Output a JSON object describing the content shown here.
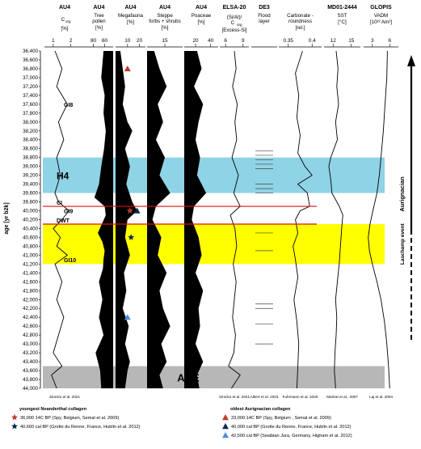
{
  "chart_data": {
    "type": "line",
    "y_axis": {
      "label": "age [yr b2k]",
      "min": 36400,
      "max": 44000,
      "step": 200,
      "reversed": true
    },
    "panels": [
      {
        "id": "corg",
        "header": "AU4",
        "var_lines": [
          "C",
          "org"
        ],
        "unit": "[%]",
        "ticks": [
          1,
          2
        ],
        "range": [
          0.5,
          2.8
        ],
        "fill": "none",
        "citation": "Sirocko et al. 2021"
      },
      {
        "id": "tree",
        "header": "AU4",
        "var_lines": [
          "Tree",
          "pollen"
        ],
        "unit": "[%]",
        "ticks": [
          60,
          80
        ],
        "range": [
          95,
          45
        ],
        "fill": "black",
        "citation": ""
      },
      {
        "id": "mega",
        "header": "AU4",
        "var_lines": [
          "Megafauna"
        ],
        "unit": "[%]",
        "ticks": [
          10,
          20
        ],
        "range": [
          0,
          25
        ],
        "fill": "black",
        "citation": ""
      },
      {
        "id": "steppe",
        "header": "AU4",
        "var_lines": [
          "Steppe",
          "forbs + shrubs"
        ],
        "unit": "[%]",
        "ticks": [
          15
        ],
        "range": [
          5,
          25
        ],
        "fill": "black",
        "citation": ""
      },
      {
        "id": "poaceae",
        "header": "AU4",
        "var_lines": [
          "Poaceae"
        ],
        "unit": "[%]",
        "ticks": [
          20,
          40
        ],
        "range": [
          5,
          50
        ],
        "fill": "black",
        "citation": ""
      },
      {
        "id": "elsa",
        "header": "ELSA-20",
        "var_lines": [
          "(Si/Al)/",
          "C",
          "org"
        ],
        "unit": "[Excess-Si]",
        "ticks": [
          6,
          9
        ],
        "range": [
          5,
          10
        ],
        "fill": "none",
        "citation": "Sirocko et al. 2021"
      },
      {
        "id": "flood",
        "header": "DE3",
        "var_lines": [
          "Flood",
          "layer"
        ],
        "unit": "",
        "ticks": [],
        "range": [
          0,
          1
        ],
        "fill": "none",
        "citation": "Albert et al. 2023"
      },
      {
        "id": "carb",
        "header": "",
        "var_lines": [
          "Carbonate -",
          "roundness"
        ],
        "unit": "[rel.]",
        "ticks": [
          0.35,
          0.4
        ],
        "range": [
          0.33,
          0.42
        ],
        "fill": "none",
        "citation": "Fuhrmann et al. 2020"
      },
      {
        "id": "sst",
        "header": "MD01-2444",
        "var_lines": [
          "SST"
        ],
        "unit": "[°C]",
        "ticks": [
          12,
          15
        ],
        "range": [
          10.5,
          16.5
        ],
        "fill": "none",
        "citation": "Martrat et al., 2007"
      },
      {
        "id": "vadm",
        "header": "GLOPIS",
        "var_lines": [
          "VADM"
        ],
        "unit": "[10²² Am²]",
        "ticks": [
          3,
          6
        ],
        "range": [
          1.5,
          7.5
        ],
        "fill": "none",
        "citation": "Laj et al. 2004"
      }
    ],
    "series": [
      {
        "panel": "corg",
        "x": [
          36400,
          36800,
          37200,
          37600,
          38000,
          38400,
          38800,
          39200,
          39600,
          39800,
          40000,
          40200,
          40400,
          40600,
          40800,
          41000,
          41200,
          41600,
          42000,
          42400,
          42800,
          43200,
          43500,
          43700,
          44000
        ],
        "values": [
          1.1,
          1.5,
          1.2,
          1.8,
          1.3,
          1.6,
          1.2,
          1.4,
          1.1,
          1.3,
          1.9,
          1.5,
          1.0,
          1.4,
          1.2,
          1.8,
          1.1,
          1.5,
          1.2,
          1.6,
          1.3,
          1.0,
          1.5,
          0.9,
          1.2
        ]
      },
      {
        "panel": "tree",
        "x": [
          36400,
          36700,
          37000,
          37400,
          37800,
          38200,
          38600,
          39000,
          39400,
          39700,
          39900,
          40100,
          40300,
          40500,
          40700,
          40900,
          41100,
          41300,
          41600,
          42000,
          42400,
          42800,
          43200,
          43600,
          44000
        ],
        "values": [
          62,
          64,
          66,
          60,
          62,
          58,
          61,
          66,
          70,
          78,
          60,
          58,
          65,
          72,
          64,
          60,
          62,
          63,
          70,
          64,
          70,
          62,
          76,
          68,
          66
        ]
      },
      {
        "panel": "mega",
        "x": [
          36400,
          36800,
          37200,
          37600,
          38000,
          38200,
          38600,
          39000,
          39400,
          39800,
          40000,
          40200,
          40600,
          41000,
          41400,
          41800,
          42200,
          42600,
          43000,
          43400,
          43600,
          44000
        ],
        "values": [
          4,
          6,
          8,
          6,
          10,
          14,
          8,
          12,
          9,
          14,
          18,
          10,
          8,
          12,
          7,
          9,
          6,
          11,
          8,
          12,
          10,
          8
        ]
      },
      {
        "panel": "steppe",
        "x": [
          36400,
          36800,
          37200,
          37600,
          38000,
          38400,
          38800,
          39200,
          39600,
          39900,
          40200,
          40600,
          41000,
          41400,
          41800,
          42200,
          42600,
          43000,
          43400,
          43700,
          44000
        ],
        "values": [
          9,
          12,
          16,
          11,
          14,
          10,
          15,
          12,
          18,
          10,
          8,
          13,
          11,
          16,
          12,
          14,
          18,
          13,
          16,
          12,
          14
        ]
      },
      {
        "panel": "poaceae",
        "x": [
          36400,
          36800,
          37200,
          37600,
          38000,
          38400,
          38800,
          39200,
          39600,
          39900,
          40200,
          40600,
          41000,
          41400,
          41800,
          42200,
          42600,
          43000,
          43400,
          43700,
          44000
        ],
        "values": [
          22,
          28,
          18,
          30,
          24,
          20,
          26,
          22,
          34,
          18,
          15,
          24,
          28,
          20,
          30,
          24,
          26,
          20,
          30,
          22,
          25
        ]
      },
      {
        "panel": "elsa",
        "x": [
          36400,
          36800,
          37200,
          37600,
          38000,
          38400,
          38800,
          39200,
          39600,
          39900,
          40100,
          40400,
          40800,
          41200,
          41600,
          42000,
          42400,
          42800,
          43200,
          43500,
          43700,
          44000
        ],
        "values": [
          7.5,
          7.8,
          7.2,
          8.0,
          7.6,
          7.9,
          7.1,
          8.2,
          7.4,
          8.5,
          6.8,
          7.6,
          7.9,
          7.3,
          7.8,
          7.5,
          7.2,
          7.7,
          7.4,
          6.5,
          8.5,
          7.0
        ]
      },
      {
        "panel": "carb",
        "x": [
          36400,
          36900,
          37400,
          37900,
          38300,
          38700,
          39000,
          39200,
          39400,
          39600,
          39900,
          40000,
          40200,
          40500,
          40800,
          41100,
          41500,
          42000,
          42500,
          43000,
          43500,
          44000
        ],
        "values": [
          0.38,
          0.365,
          0.372,
          0.368,
          0.375,
          0.37,
          0.385,
          0.4,
          0.37,
          0.39,
          0.395,
          0.375,
          0.365,
          0.37,
          0.36,
          0.365,
          0.37,
          0.362,
          0.368,
          0.372,
          0.37,
          0.368
        ]
      },
      {
        "panel": "sst",
        "x": [
          36400,
          36800,
          37200,
          37600,
          38000,
          38400,
          38800,
          39000,
          39300,
          39600,
          39900,
          40100,
          40400,
          40800,
          41200,
          41600,
          42000,
          42400,
          42800,
          43200,
          43600,
          44000
        ],
        "values": [
          12.5,
          12.8,
          12.6,
          12.9,
          12.4,
          12.7,
          11.6,
          11.3,
          11.6,
          11.8,
          13.0,
          13.6,
          13.4,
          13.2,
          13.0,
          12.7,
          12.4,
          12.6,
          12.5,
          12.3,
          12.2,
          12.4
        ]
      },
      {
        "panel": "vadm",
        "x": [
          36400,
          37000,
          37600,
          38200,
          38800,
          39200,
          39600,
          40000,
          40300,
          40600,
          40900,
          41200,
          41600,
          42000,
          42500,
          43000,
          43500,
          44000
        ],
        "values": [
          5.6,
          5.5,
          5.2,
          4.9,
          4.5,
          4.2,
          3.8,
          3.1,
          2.6,
          2.3,
          2.5,
          3.0,
          3.8,
          4.5,
          5.1,
          5.5,
          5.8,
          6.0
        ]
      }
    ],
    "flood_layers": [
      38650,
      38750,
      38850,
      38950,
      39050,
      39400,
      39500,
      39600,
      40500,
      40900,
      42100,
      42200,
      42550,
      43000
    ],
    "bands": [
      {
        "from": 38800,
        "to": 39600,
        "color": "#8fd3e6",
        "label": "H4"
      },
      {
        "from": 40300,
        "to": 41200,
        "color": "#ffff00",
        "label": ""
      },
      {
        "from": 43500,
        "to": 44000,
        "color": "#b7b7b7",
        "label": "ACE"
      }
    ],
    "lines": [
      {
        "age": 39900,
        "label": "CI",
        "color": "#dd1111"
      },
      {
        "age": 40300,
        "label": "DWT",
        "color": "#dd1111"
      }
    ],
    "labels": [
      {
        "age": 37600,
        "text": "GI8"
      },
      {
        "age": 40000,
        "text": "GI9"
      },
      {
        "age": 41100,
        "text": "GI10"
      }
    ],
    "right_side": {
      "arrow_label": "Aurignacian",
      "event_label": "Laschamp event"
    },
    "markers": [
      {
        "age": 36800,
        "x": 10,
        "shape": "triangle",
        "color": "#c0392b"
      },
      {
        "age": 40000,
        "x": 12,
        "shape": "star",
        "color": "#c0392b"
      },
      {
        "age": 40000,
        "x": 18,
        "shape": "triangle",
        "color": "#0d2b4a"
      },
      {
        "age": 40600,
        "x": 13,
        "shape": "star",
        "color": "#0d2b4a"
      },
      {
        "age": 42400,
        "x": 10,
        "shape": "triangle",
        "color": "#4a8fd6"
      }
    ]
  },
  "legend": {
    "left_title": "youngest Neanderthal collagen",
    "left_items": [
      {
        "shape": "star",
        "color": "#c0392b",
        "text": "36,000 14C BP (Spy, Belgium, Semal et al. 2009)"
      },
      {
        "shape": "star",
        "color": "#0d2b4a",
        "text": "40,660 cal BP (Grotte du Renne, France, Hublin et al. 2012)"
      }
    ],
    "right_title": "oldest Aurignacian collagen",
    "right_items": [
      {
        "shape": "triangle",
        "color": "#c0392b",
        "text": "33,000 14C BP (Spy, Belgium , Semal et al. 2009)"
      },
      {
        "shape": "triangle",
        "color": "#0d2b4a",
        "text": "40,000 cal BP (Grotte du Renne, France, Hublin et al. 2012)"
      },
      {
        "shape": "triangle",
        "color": "#4a8fd6",
        "text": "42,500 cal BP (Swabian Jura, Germany, Higham et al. 2012)"
      }
    ]
  }
}
